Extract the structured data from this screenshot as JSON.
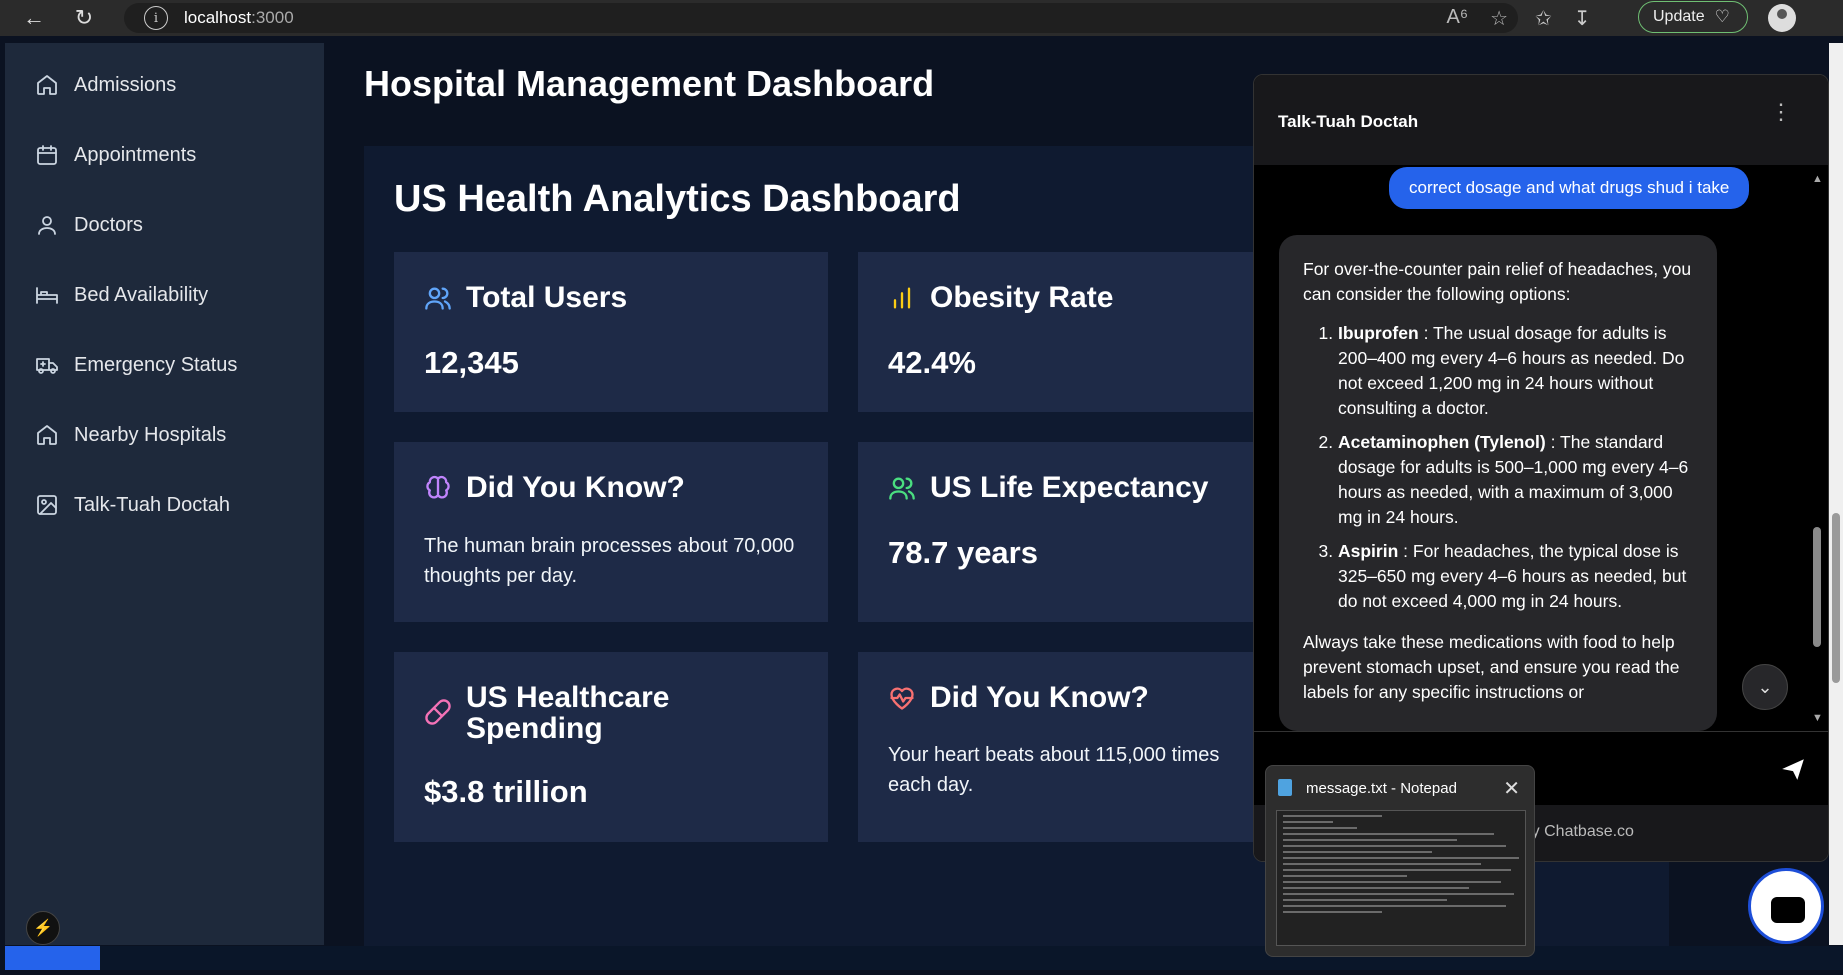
{
  "browser": {
    "url_host": "localhost",
    "url_port": ":3000",
    "update_label": "Update"
  },
  "sidebar": {
    "items": [
      {
        "label": "Admissions",
        "icon": "home-icon"
      },
      {
        "label": "Appointments",
        "icon": "calendar-icon"
      },
      {
        "label": "Doctors",
        "icon": "user-icon"
      },
      {
        "label": "Bed Availability",
        "icon": "bed-icon"
      },
      {
        "label": "Emergency Status",
        "icon": "ambulance-icon"
      },
      {
        "label": "Nearby Hospitals",
        "icon": "home-icon"
      },
      {
        "label": "Talk-Tuah Doctah",
        "icon": "image-icon"
      }
    ]
  },
  "main": {
    "page_title": "Hospital Management Dashboard",
    "panel_title": "US Health Analytics Dashboard",
    "cards": [
      {
        "title": "Total Users",
        "value": "12,345",
        "icon": "users-icon",
        "color": "#60a5fa"
      },
      {
        "title": "Obesity Rate",
        "value": "42.4%",
        "icon": "bar-chart-icon",
        "color": "#facc15"
      },
      {
        "title": "Did You Know?",
        "text": "The human brain processes about 70,000 thoughts per day.",
        "icon": "brain-icon",
        "color": "#c084fc"
      },
      {
        "title": "US Life Expectancy",
        "value": "78.7 years",
        "icon": "users-icon",
        "color": "#4ade80"
      },
      {
        "title": "US Healthcare Spending",
        "value": "$3.8 trillion",
        "icon": "pill-icon",
        "color": "#f472b6"
      },
      {
        "title": "Did You Know?",
        "text": "Your heart beats about 115,000 times each day.",
        "icon": "heart-pulse-icon",
        "color": "#f87171"
      }
    ]
  },
  "chat": {
    "name": "Talk-Tuah Doctah",
    "user_message": "correct dosage and what drugs shud i take",
    "bot_intro": "For over-the-counter pain relief of headaches, you can consider the following options:",
    "bot_items": [
      {
        "bold": "Ibuprofen",
        "text": ": The usual dosage for adults is 200–400 mg every 4–6 hours as needed. Do not exceed 1,200 mg in 24 hours without consulting a doctor."
      },
      {
        "bold": "Acetaminophen (Tylenol)",
        "text": ": The standard dosage for adults is 500–1,000 mg every 4–6 hours as needed, with a maximum of 3,000 mg in 24 hours."
      },
      {
        "bold": "Aspirin",
        "text": ": For headaches, the typical dose is 325–650 mg every 4–6 hours as needed, but do not exceed 4,000 mg in 24 hours."
      }
    ],
    "bot_outro": "Always take these medications with food to help prevent stomach upset, and ensure you read the labels for any specific instructions or",
    "powered_by": "By Chatbase.co"
  },
  "notepad": {
    "title": "message.txt - Notepad"
  },
  "colors": {
    "sidebar_bg": "#1e293b",
    "card_bg": "#1e2a47",
    "accent": "#2563eb"
  }
}
